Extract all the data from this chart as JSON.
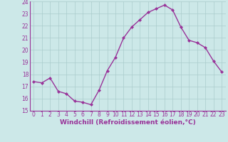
{
  "x": [
    0,
    1,
    2,
    3,
    4,
    5,
    6,
    7,
    8,
    9,
    10,
    11,
    12,
    13,
    14,
    15,
    16,
    17,
    18,
    19,
    20,
    21,
    22,
    23
  ],
  "y": [
    17.4,
    17.3,
    17.7,
    16.6,
    16.4,
    15.8,
    15.7,
    15.5,
    16.7,
    18.3,
    19.4,
    21.0,
    21.9,
    22.5,
    23.1,
    23.4,
    23.7,
    23.3,
    21.9,
    20.8,
    20.6,
    20.2,
    19.1,
    18.2
  ],
  "line_color": "#993399",
  "marker": "D",
  "marker_size": 2,
  "bg_color": "#cce8e8",
  "grid_color": "#aacccc",
  "text_color": "#993399",
  "xlabel": "Windchill (Refroidissement éolien,°C)",
  "xlim_min": -0.5,
  "xlim_max": 23.5,
  "ylim": [
    15,
    24
  ],
  "yticks": [
    15,
    16,
    17,
    18,
    19,
    20,
    21,
    22,
    23,
    24
  ],
  "xticks": [
    0,
    1,
    2,
    3,
    4,
    5,
    6,
    7,
    8,
    9,
    10,
    11,
    12,
    13,
    14,
    15,
    16,
    17,
    18,
    19,
    20,
    21,
    22,
    23
  ],
  "tick_label_size": 5.5,
  "xlabel_size": 6.5,
  "linewidth": 1.0
}
